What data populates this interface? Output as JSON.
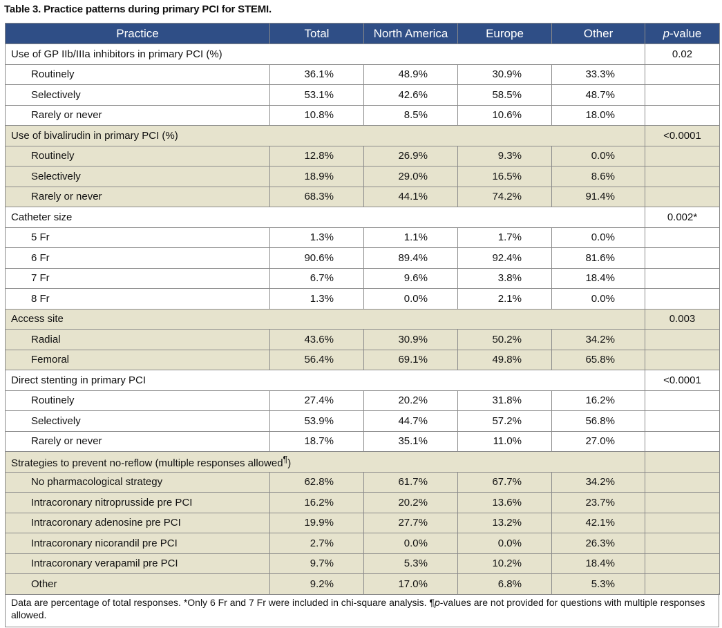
{
  "title": "Table 3. Practice patterns during primary PCI for STEMI.",
  "table": {
    "header": [
      "Practice",
      "Total",
      "North America",
      "Europe",
      "Other",
      [
        "p",
        "-value"
      ]
    ],
    "groups": [
      {
        "label": [
          "Use of GP IIb/IIIa inhibitors in primary PCI (%)"
        ],
        "p_value": "0.02",
        "rows": [
          [
            "Routinely",
            "36.1%",
            "48.9%",
            "30.9%",
            "33.3%"
          ],
          [
            "Selectively",
            "53.1%",
            "42.6%",
            "58.5%",
            "48.7%"
          ],
          [
            "Rarely or never",
            "10.8%",
            "8.5%",
            "10.6%",
            "18.0%"
          ]
        ]
      },
      {
        "label": [
          "Use of bivalirudin in primary PCI (%)"
        ],
        "p_value": "<0.0001",
        "rows": [
          [
            "Routinely",
            "12.8%",
            "26.9%",
            "9.3%",
            "0.0%"
          ],
          [
            "Selectively",
            "18.9%",
            "29.0%",
            "16.5%",
            "8.6%"
          ],
          [
            "Rarely or never",
            "68.3%",
            "44.1%",
            "74.2%",
            "91.4%"
          ]
        ]
      },
      {
        "label": [
          "Catheter size"
        ],
        "p_value": "0.002*",
        "rows": [
          [
            "5 Fr",
            "1.3%",
            "1.1%",
            "1.7%",
            "0.0%"
          ],
          [
            "6 Fr",
            "90.6%",
            "89.4%",
            "92.4%",
            "81.6%"
          ],
          [
            "7 Fr",
            "6.7%",
            "9.6%",
            "3.8%",
            "18.4%"
          ],
          [
            "8 Fr",
            "1.3%",
            "0.0%",
            "2.1%",
            "0.0%"
          ]
        ]
      },
      {
        "label": [
          "Access site"
        ],
        "p_value": "0.003",
        "rows": [
          [
            "Radial",
            "43.6%",
            "30.9%",
            "50.2%",
            "34.2%"
          ],
          [
            "Femoral",
            "56.4%",
            "69.1%",
            "49.8%",
            "65.8%"
          ]
        ]
      },
      {
        "label": [
          "Direct stenting in primary PCI"
        ],
        "p_value": "<0.0001",
        "rows": [
          [
            "Routinely",
            "27.4%",
            "20.2%",
            "31.8%",
            "16.2%"
          ],
          [
            "Selectively",
            "53.9%",
            "44.7%",
            "57.2%",
            "56.8%"
          ],
          [
            "Rarely or never",
            "18.7%",
            "35.1%",
            "11.0%",
            "27.0%"
          ]
        ]
      },
      {
        "label": [
          "Strategies to prevent no-reflow (multiple responses allowed",
          "¶",
          ")"
        ],
        "rows": [
          [
            "No pharmacological strategy",
            "62.8%",
            "61.7%",
            "67.7%",
            "34.2%"
          ],
          [
            "Intracoronary nitroprusside pre PCI",
            "16.2%",
            "20.2%",
            "13.6%",
            "23.7%"
          ],
          [
            "Intracoronary adenosine pre PCI",
            "19.9%",
            "27.7%",
            "13.2%",
            "42.1%"
          ],
          [
            "Intracoronary nicorandil pre PCI",
            "2.7%",
            "0.0%",
            "0.0%",
            "26.3%"
          ],
          [
            "Intracoronary verapamil pre PCI",
            "9.7%",
            "5.3%",
            "10.2%",
            "18.4%"
          ],
          [
            "Other",
            "9.2%",
            "17.0%",
            "6.8%",
            "5.3%"
          ]
        ]
      }
    ]
  },
  "footnote": [
    "Data are percentage of total responses. *Only 6 Fr and 7 Fr were included in chi-square analysis. ¶",
    "p",
    "-values are not provided for questions with multiple responses allowed."
  ]
}
